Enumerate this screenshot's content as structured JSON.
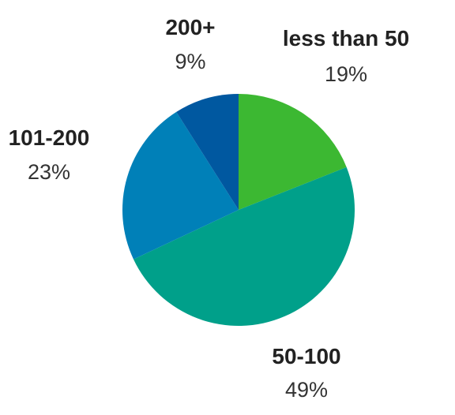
{
  "chart_data": {
    "type": "pie",
    "title": "",
    "slices": [
      {
        "label": "less than 50",
        "value": 19,
        "value_label": "19%",
        "color": "#3cb832"
      },
      {
        "label": "50-100",
        "value": 49,
        "value_label": "49%",
        "color": "#00a08a"
      },
      {
        "label": "101-200",
        "value": 23,
        "value_label": "23%",
        "color": "#0080b8"
      },
      {
        "label": "200+",
        "value": 9,
        "value_label": "9%",
        "color": "#0058a0"
      }
    ],
    "start_angle": "12 o'clock",
    "direction": "clockwise",
    "legend": "none",
    "label_style": "outside labels with category name above percentage"
  }
}
